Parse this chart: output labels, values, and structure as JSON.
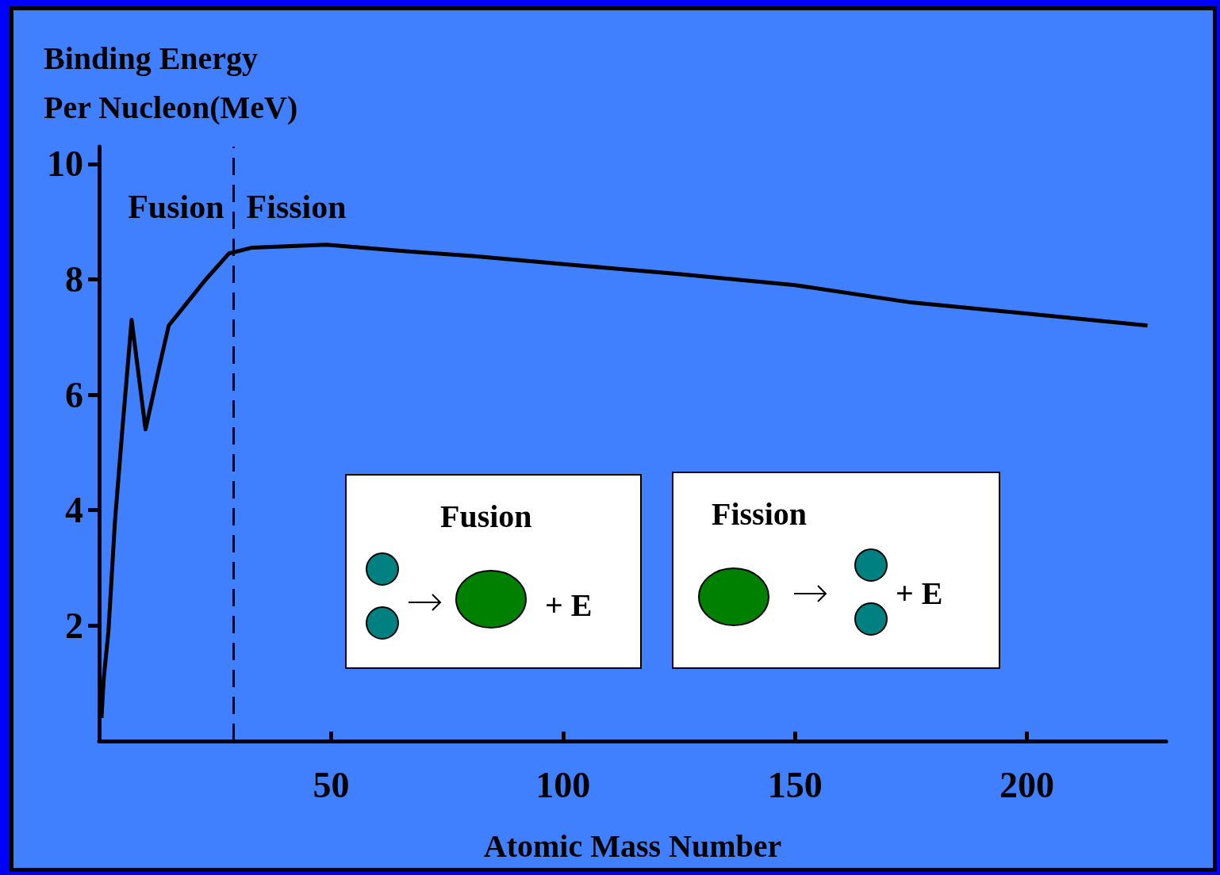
{
  "chart_data": {
    "type": "line",
    "xlabel": "Atomic Mass Number",
    "ylabel": "Binding Energy Per Nucleon(MeV)",
    "x": [
      0.5,
      1,
      2,
      3.4,
      5,
      7,
      10,
      13,
      15,
      20,
      23,
      28,
      33,
      49,
      64,
      81,
      102,
      124,
      150,
      175,
      201,
      226
    ],
    "series": [
      {
        "color": "#000000",
        "values": [
          0.4,
          1.1,
          1.9,
          3.8,
          5.4,
          7.3,
          5.4,
          6.5,
          7.2,
          7.7,
          8.0,
          8.45,
          8.55,
          8.6,
          8.5,
          8.4,
          8.25,
          8.1,
          7.9,
          7.6,
          7.4,
          7.2
        ]
      }
    ],
    "xlim": [
      0,
      230
    ],
    "xticks": [
      50,
      100,
      150,
      200
    ],
    "ylim": [
      0,
      10.3
    ],
    "yticks": [
      2,
      4,
      6,
      8,
      10
    ],
    "grid": false,
    "marker": "none",
    "line_style": "solid",
    "ref_lines": [
      {
        "axis": "x",
        "value": 29,
        "line_style": "dashed",
        "color": "#000000"
      }
    ],
    "annotations": [
      "Fusion",
      "Fission",
      "Fusion",
      "+ E",
      "Fission",
      "+ E"
    ]
  }
}
